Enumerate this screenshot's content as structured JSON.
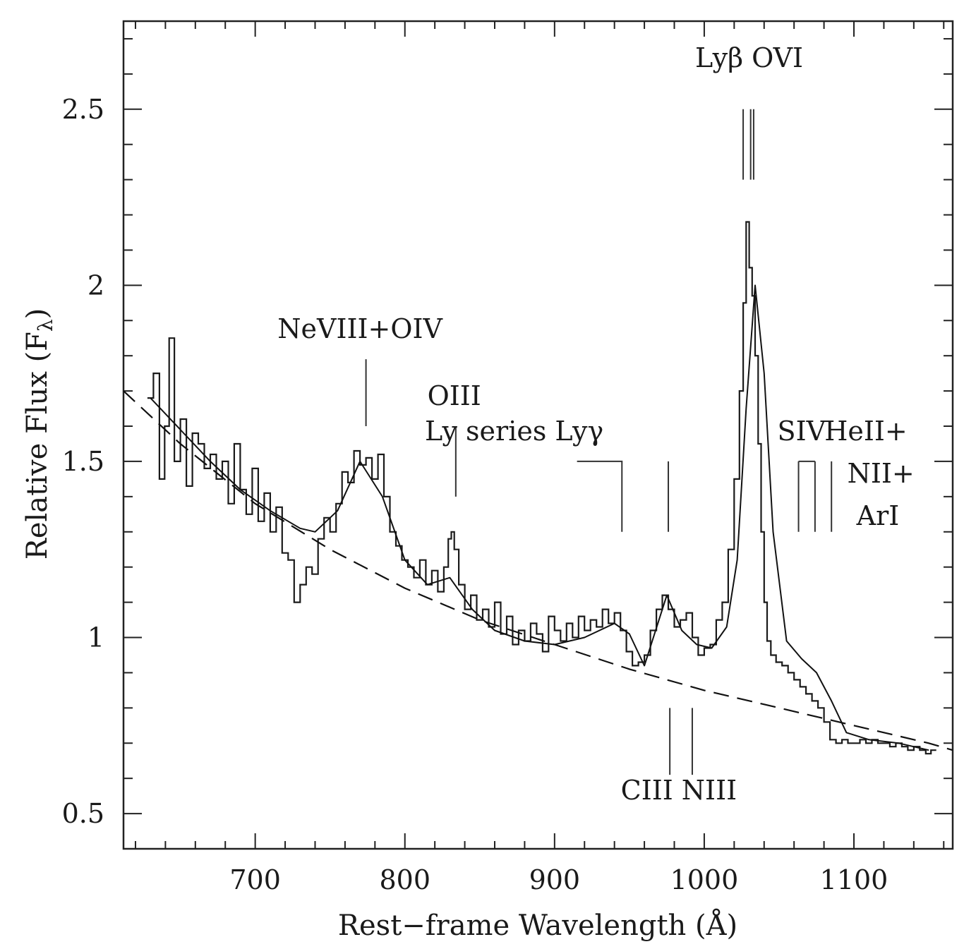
{
  "chart_data": {
    "type": "line",
    "xlabel": "Rest−frame Wavelength (Å)",
    "ylabel_main": "Relative Flux (F",
    "ylabel_sub": "λ",
    "ylabel_close": ")",
    "xlim": [
      612,
      1166
    ],
    "ylim": [
      0.4,
      2.75
    ],
    "xticks": [
      700,
      800,
      900,
      1000,
      1100
    ],
    "xtick_labels": [
      "700",
      "800",
      "900",
      "1000",
      "1100"
    ],
    "yticks": [
      0.5,
      1,
      1.5,
      2,
      2.5
    ],
    "ytick_labels": [
      "0.5",
      "1",
      "1.5",
      "2",
      "2.5"
    ],
    "grid": false,
    "series": [
      {
        "style": "histogram-spectrum",
        "x": [
          630,
          634,
          638,
          641,
          644,
          648,
          652,
          656,
          660,
          664,
          668,
          672,
          676,
          680,
          684,
          688,
          692,
          696,
          700,
          704,
          708,
          712,
          716,
          720,
          724,
          728,
          732,
          736,
          740,
          744,
          748,
          752,
          756,
          760,
          764,
          768,
          772,
          776,
          780,
          784,
          788,
          792,
          796,
          800,
          804,
          808,
          812,
          816,
          820,
          824,
          828,
          830,
          832,
          834,
          838,
          842,
          846,
          850,
          854,
          858,
          862,
          866,
          870,
          874,
          878,
          882,
          886,
          890,
          894,
          898,
          902,
          906,
          910,
          914,
          918,
          922,
          926,
          930,
          934,
          938,
          942,
          946,
          950,
          954,
          958,
          962,
          966,
          970,
          974,
          978,
          982,
          986,
          990,
          994,
          998,
          1002,
          1006,
          1010,
          1014,
          1018,
          1022,
          1025,
          1027,
          1029,
          1031,
          1033,
          1035,
          1037,
          1039,
          1041,
          1043,
          1046,
          1050,
          1054,
          1058,
          1062,
          1066,
          1070,
          1074,
          1078,
          1082,
          1086,
          1090,
          1094,
          1098,
          1102,
          1106,
          1110,
          1114,
          1118,
          1122,
          1126,
          1130,
          1134,
          1138,
          1142,
          1146,
          1150,
          1153
        ],
        "y": [
          1.68,
          1.75,
          1.45,
          1.6,
          1.85,
          1.5,
          1.62,
          1.43,
          1.58,
          1.55,
          1.48,
          1.52,
          1.45,
          1.5,
          1.38,
          1.55,
          1.42,
          1.35,
          1.48,
          1.33,
          1.41,
          1.3,
          1.37,
          1.24,
          1.22,
          1.1,
          1.15,
          1.2,
          1.18,
          1.28,
          1.34,
          1.3,
          1.38,
          1.47,
          1.44,
          1.53,
          1.49,
          1.51,
          1.45,
          1.52,
          1.4,
          1.3,
          1.26,
          1.22,
          1.2,
          1.17,
          1.22,
          1.15,
          1.19,
          1.13,
          1.2,
          1.28,
          1.3,
          1.25,
          1.15,
          1.08,
          1.12,
          1.05,
          1.08,
          1.03,
          1.1,
          1.01,
          1.06,
          0.98,
          1.02,
          0.99,
          1.04,
          1.01,
          0.96,
          1.06,
          1.02,
          0.99,
          1.04,
          1.0,
          1.06,
          1.02,
          1.05,
          1.03,
          1.08,
          1.04,
          1.07,
          1.02,
          0.96,
          0.92,
          0.93,
          0.95,
          1.02,
          1.08,
          1.12,
          1.08,
          1.03,
          1.05,
          1.07,
          1.0,
          0.95,
          0.97,
          0.98,
          1.05,
          1.1,
          1.25,
          1.45,
          1.7,
          1.95,
          2.18,
          2.05,
          1.97,
          1.8,
          1.55,
          1.3,
          1.1,
          0.99,
          0.95,
          0.93,
          0.92,
          0.9,
          0.88,
          0.86,
          0.84,
          0.82,
          0.8,
          0.76,
          0.71,
          0.7,
          0.71,
          0.7,
          0.7,
          0.71,
          0.7,
          0.71,
          0.7,
          0.7,
          0.69,
          0.7,
          0.69,
          0.68,
          0.69,
          0.68,
          0.67,
          0.68
        ]
      },
      {
        "style": "smooth-fit",
        "x": [
          630,
          650,
          670,
          690,
          710,
          730,
          740,
          755,
          770,
          785,
          800,
          815,
          830,
          845,
          860,
          880,
          900,
          920,
          940,
          950,
          960,
          975,
          985,
          995,
          1005,
          1015,
          1022,
          1028,
          1034,
          1040,
          1046,
          1055,
          1065,
          1075,
          1085,
          1095,
          1110,
          1130,
          1150
        ],
        "y": [
          1.68,
          1.59,
          1.5,
          1.42,
          1.36,
          1.31,
          1.3,
          1.36,
          1.5,
          1.4,
          1.22,
          1.15,
          1.17,
          1.08,
          1.02,
          0.99,
          0.98,
          1.0,
          1.04,
          1.01,
          0.92,
          1.12,
          1.02,
          0.98,
          0.97,
          1.03,
          1.22,
          1.65,
          2.0,
          1.75,
          1.3,
          0.99,
          0.94,
          0.9,
          0.82,
          0.73,
          0.71,
          0.7,
          0.68
        ]
      },
      {
        "style": "dashed-continuum",
        "x": [
          612,
          650,
          700,
          750,
          800,
          850,
          900,
          950,
          1000,
          1050,
          1100,
          1150,
          1166
        ],
        "y": [
          1.7,
          1.55,
          1.38,
          1.25,
          1.14,
          1.05,
          0.98,
          0.91,
          0.85,
          0.8,
          0.75,
          0.7,
          0.68
        ]
      }
    ],
    "annotations": [
      {
        "text": "Lyβ OVI",
        "x": 1030,
        "y": 2.62,
        "anchor": "middle"
      },
      {
        "text": "NeVIII+OIV",
        "x": 770,
        "y": 1.85,
        "anchor": "middle"
      },
      {
        "text": "OIII",
        "x": 833,
        "y": 1.66,
        "anchor": "middle"
      },
      {
        "text": "Ly series Lyγ",
        "x": 873,
        "y": 1.56,
        "anchor": "middle"
      },
      {
        "text": "SIV",
        "x": 1065,
        "y": 1.56,
        "anchor": "middle"
      },
      {
        "text": "HeII+",
        "x": 1108,
        "y": 1.56,
        "anchor": "middle"
      },
      {
        "text": "NII+",
        "x": 1118,
        "y": 1.44,
        "anchor": "middle"
      },
      {
        "text": "ArI",
        "x": 1116,
        "y": 1.32,
        "anchor": "middle"
      },
      {
        "text": "CIII NIII",
        "x": 983,
        "y": 0.54,
        "anchor": "middle"
      }
    ],
    "line_markers": [
      {
        "x": 1026,
        "y1": 2.3,
        "y2": 2.5
      },
      {
        "x": 1031,
        "y1": 2.3,
        "y2": 2.5
      },
      {
        "x": 1033,
        "y1": 2.3,
        "y2": 2.5
      },
      {
        "x": 774,
        "y1": 1.6,
        "y2": 1.79
      },
      {
        "x": 834,
        "y1": 1.4,
        "y2": 1.6
      },
      {
        "x": 976,
        "y1": 1.3,
        "y2": 1.5
      },
      {
        "x": 1063,
        "y1": 1.3,
        "y2": 1.5
      },
      {
        "x": 1074,
        "y1": 1.3,
        "y2": 1.5
      },
      {
        "x": 1085,
        "y1": 1.3,
        "y2": 1.5
      },
      {
        "x": 977,
        "y1": 0.61,
        "y2": 0.8
      },
      {
        "x": 992,
        "y1": 0.61,
        "y2": 0.8
      }
    ],
    "ly_series_bracket": {
      "x1": 915,
      "x2": 945,
      "y_top": 1.5,
      "y_bottom": 1.3
    },
    "siv_bracket": {
      "x1": 1063,
      "x2": 1074,
      "y_top": 1.5
    }
  }
}
